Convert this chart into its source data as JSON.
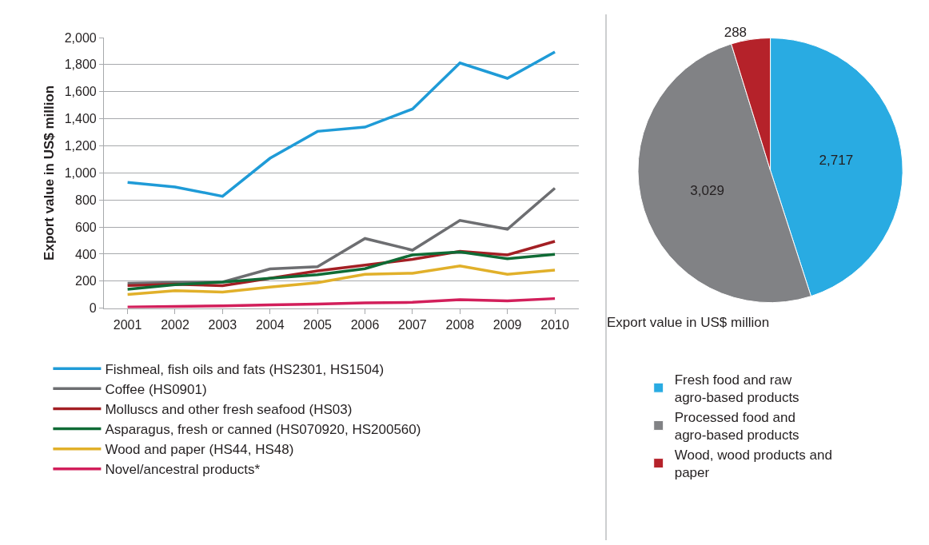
{
  "chart_data": [
    {
      "type": "line",
      "ylabel": "Export value in US$ million",
      "categories": [
        "2001",
        "2002",
        "2003",
        "2004",
        "2005",
        "2006",
        "2007",
        "2008",
        "2009",
        "2010"
      ],
      "ylim": [
        0,
        2000
      ],
      "yticks": [
        {
          "value": 0,
          "label": "0"
        },
        {
          "value": 200,
          "label": "200"
        },
        {
          "value": 400,
          "label": "400"
        },
        {
          "value": 600,
          "label": "600"
        },
        {
          "value": 800,
          "label": "800"
        },
        {
          "value": 1000,
          "label": "1,000"
        },
        {
          "value": 1200,
          "label": "1,200"
        },
        {
          "value": 1400,
          "label": "1,400"
        },
        {
          "value": 1600,
          "label": "1,600"
        },
        {
          "value": 1800,
          "label": "1,800"
        },
        {
          "value": 2000,
          "label": "2,000"
        }
      ],
      "grid": "y",
      "legend": "bottom",
      "marker": "none",
      "line_style": "solid",
      "series": [
        {
          "name": "Fishmeal, fish oils and fats (HS2301, HS1504)",
          "color": "#1f9bd7",
          "values": [
            929,
            896,
            827,
            1108,
            1307,
            1338,
            1472,
            1812,
            1699,
            1894
          ]
        },
        {
          "name": "Coffee (HS0901)",
          "color": "#6d6e71",
          "values": [
            184,
            190,
            193,
            290,
            307,
            515,
            429,
            649,
            584,
            887
          ]
        },
        {
          "name": "Molluscs and other fresh seafood (HS03)",
          "color": "#a31f24",
          "values": [
            167,
            177,
            167,
            221,
            275,
            318,
            361,
            420,
            394,
            494
          ]
        },
        {
          "name": "Asparagus, fresh or canned (HS070920, HS200560)",
          "color": "#0f6b35",
          "values": [
            139,
            173,
            193,
            221,
            247,
            292,
            394,
            416,
            366,
            398
          ]
        },
        {
          "name": "Wood and paper (HS44, HS48)",
          "color": "#e1b02a",
          "values": [
            102,
            130,
            119,
            156,
            188,
            251,
            258,
            312,
            251,
            281
          ]
        },
        {
          "name": "Novel/ancestral products*",
          "color": "#d21f5b",
          "values": [
            9,
            13,
            17,
            24,
            30,
            39,
            43,
            63,
            54,
            71
          ]
        }
      ]
    },
    {
      "type": "pie",
      "title": "Export value in US$ million",
      "categories": [
        "Fresh food and raw agro-based products",
        "Processed food and agro-based products",
        "Wood, wood products and paper"
      ],
      "values": [
        2717,
        3029,
        288
      ],
      "colors": [
        "#29abe2",
        "#818285",
        "#b5222a"
      ],
      "value_labels": [
        "2,717",
        "3,029",
        "288"
      ],
      "legend": "bottom"
    }
  ]
}
